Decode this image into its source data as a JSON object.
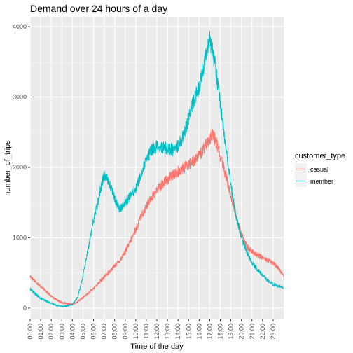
{
  "chart_data": {
    "type": "line",
    "title": "Demand over 24 hours of a day",
    "xlabel": "Time of the day",
    "ylabel": "number_of_trips",
    "xlim": [
      0,
      1440
    ],
    "ylim": [
      -160,
      4140
    ],
    "y_ticks": [
      0,
      1000,
      2000,
      3000,
      4000
    ],
    "y_tick_labels": [
      "0",
      "1000",
      "2000",
      "3000",
      "4000"
    ],
    "x_ticks": [
      0,
      60,
      120,
      180,
      240,
      300,
      360,
      420,
      480,
      540,
      600,
      660,
      720,
      780,
      840,
      900,
      960,
      1020,
      1080,
      1140,
      1200,
      1260,
      1320,
      1380
    ],
    "x_tick_labels": [
      "00:00",
      "01:00",
      "02:00",
      "03:00",
      "04:00",
      "05:00",
      "06:00",
      "07:00",
      "08:00",
      "09:00",
      "10:00",
      "11:00",
      "12:00",
      "13:00",
      "14:00",
      "15:00",
      "16:00",
      "17:00",
      "18:00",
      "19:00",
      "20:00",
      "21:00",
      "22:00",
      "23:00"
    ],
    "grid": true,
    "background": "#ebebeb",
    "legend": {
      "title": "customer_type",
      "position": "right"
    },
    "series": [
      {
        "name": "casual",
        "color": "#f8766d",
        "x": [
          0,
          30,
          60,
          90,
          120,
          150,
          180,
          210,
          240,
          270,
          300,
          330,
          360,
          390,
          420,
          450,
          480,
          510,
          540,
          570,
          600,
          630,
          660,
          690,
          720,
          750,
          780,
          810,
          840,
          870,
          900,
          930,
          960,
          990,
          1020,
          1035,
          1050,
          1065,
          1080,
          1110,
          1140,
          1170,
          1200,
          1230,
          1260,
          1290,
          1320,
          1350,
          1380,
          1410,
          1439
        ],
        "y": [
          450,
          380,
          310,
          240,
          170,
          120,
          80,
          60,
          55,
          90,
          150,
          210,
          280,
          360,
          440,
          520,
          600,
          680,
          800,
          950,
          1120,
          1300,
          1450,
          1580,
          1680,
          1760,
          1830,
          1890,
          1940,
          1990,
          2040,
          2100,
          2160,
          2280,
          2420,
          2460,
          2400,
          2300,
          2150,
          1900,
          1600,
          1300,
          1050,
          880,
          800,
          760,
          720,
          680,
          640,
          570,
          460
        ]
      },
      {
        "name": "member",
        "color": "#00bfc4",
        "x": [
          0,
          30,
          60,
          90,
          120,
          150,
          180,
          210,
          240,
          270,
          300,
          330,
          360,
          380,
          400,
          420,
          435,
          450,
          465,
          480,
          500,
          510,
          525,
          540,
          570,
          600,
          630,
          660,
          690,
          720,
          750,
          780,
          810,
          840,
          870,
          900,
          930,
          960,
          990,
          1005,
          1020,
          1028,
          1035,
          1050,
          1065,
          1080,
          1110,
          1140,
          1170,
          1200,
          1230,
          1260,
          1290,
          1320,
          1350,
          1380,
          1410,
          1439
        ],
        "y": [
          270,
          200,
          140,
          100,
          70,
          40,
          25,
          30,
          50,
          150,
          450,
          850,
          1250,
          1450,
          1700,
          1900,
          1850,
          1750,
          1700,
          1550,
          1450,
          1400,
          1450,
          1500,
          1600,
          1700,
          1900,
          2100,
          2250,
          2300,
          2280,
          2270,
          2250,
          2300,
          2450,
          2700,
          2950,
          3150,
          3500,
          3700,
          3850,
          3750,
          3650,
          3500,
          3200,
          2900,
          2300,
          1750,
          1300,
          1000,
          800,
          650,
          550,
          470,
          390,
          340,
          310,
          290
        ]
      }
    ]
  }
}
